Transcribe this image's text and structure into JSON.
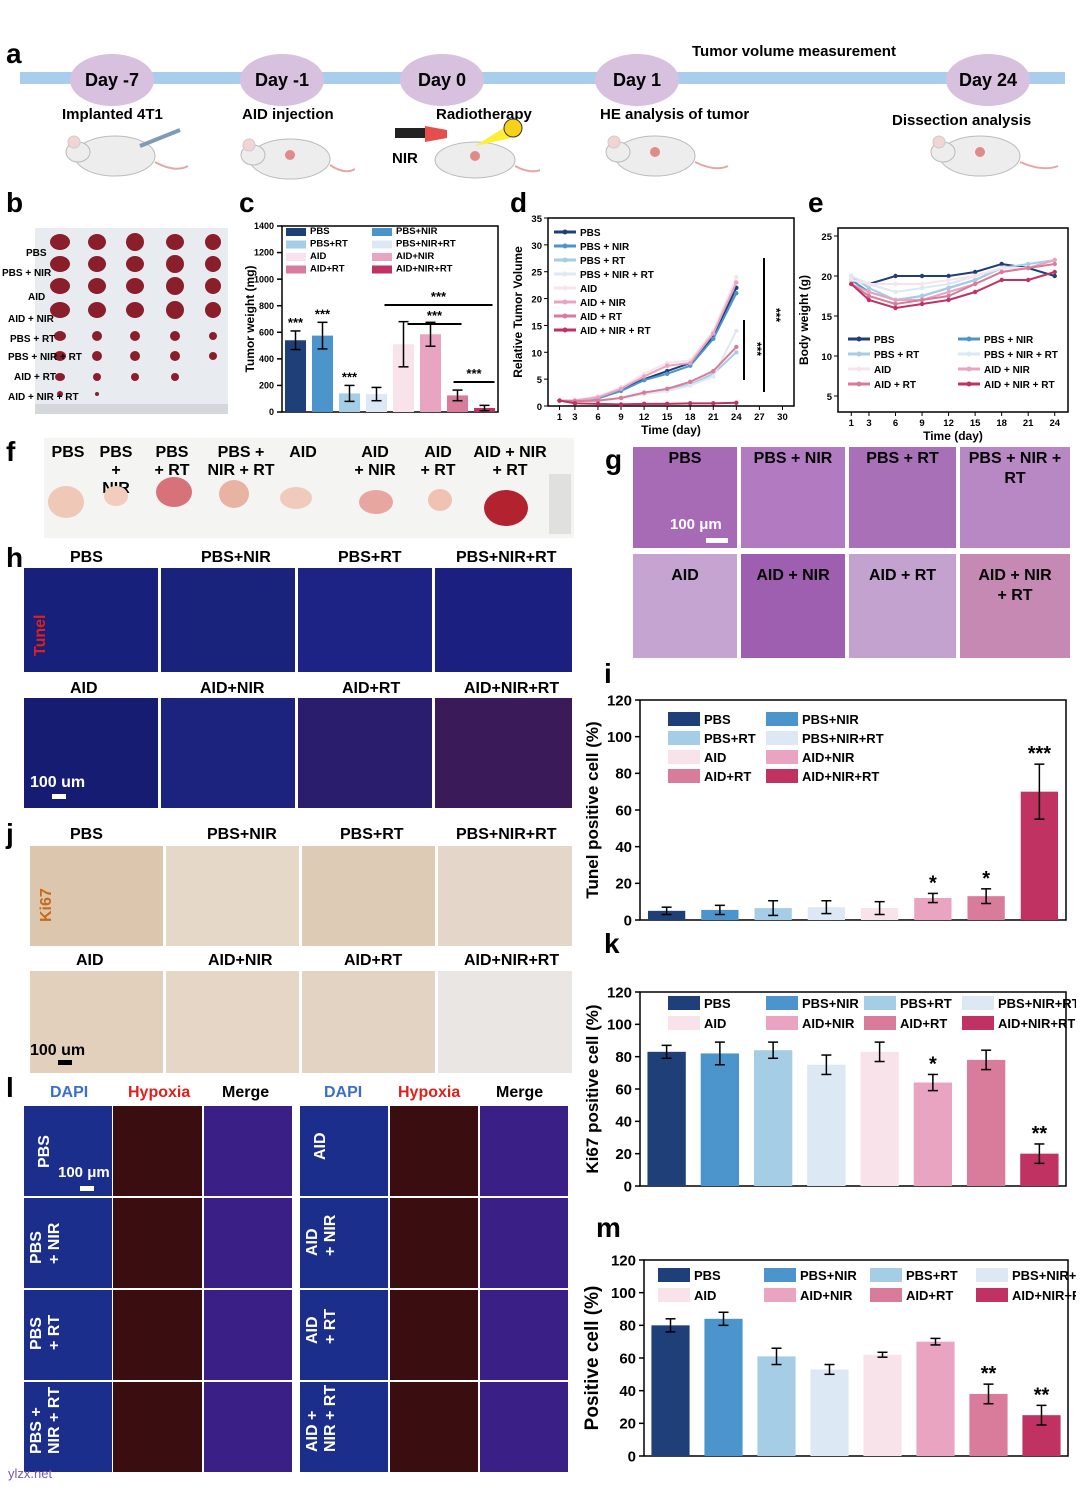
{
  "panels": {
    "a": "a",
    "b": "b",
    "c": "c",
    "d": "d",
    "e": "e",
    "f": "f",
    "g": "g",
    "h": "h",
    "i": "i",
    "j": "j",
    "k": "k",
    "l": "l",
    "m": "m"
  },
  "timeline": {
    "measurement_label": "Tumor volume measurement",
    "days": [
      "Day -7",
      "Day -1",
      "Day 0",
      "Day 1",
      "Day 24"
    ],
    "events": [
      "Implanted 4T1",
      "AID injection",
      "Radiotherapy",
      "HE analysis of tumor",
      "Dissection analysis"
    ],
    "nir_label": "NIR"
  },
  "panel_b": {
    "row_labels": [
      "PBS",
      "PBS + NIR",
      "AID",
      "AID + NIR",
      "PBS + RT",
      "PBS + NIR + RT",
      "AID + RT",
      "AID + NIR + RT"
    ]
  },
  "panel_f": {
    "labels": [
      "PBS",
      "PBS\n+ NIR",
      "PBS\n+ RT",
      "PBS +\nNIR + RT",
      "AID",
      "AID\n+ NIR",
      "AID\n+ RT",
      "AID + NIR\n+ RT"
    ]
  },
  "panel_g": {
    "labels": [
      "PBS",
      "PBS + NIR",
      "PBS + RT",
      "PBS + NIR +\nRT",
      "AID",
      "AID + NIR",
      "AID + RT",
      "AID + NIR\n+ RT"
    ],
    "scale": "100 μm"
  },
  "panel_h": {
    "labels_top": [
      "PBS",
      "PBS+NIR",
      "PBS+RT",
      "PBS+NIR+RT"
    ],
    "labels_bottom": [
      "AID",
      "AID+NIR",
      "AID+RT",
      "AID+NIR+RT"
    ],
    "stain": "Tunel",
    "scale": "100 um"
  },
  "panel_j": {
    "labels_top": [
      "PBS",
      "PBS+NIR",
      "PBS+RT",
      "PBS+NIR+RT"
    ],
    "labels_bottom": [
      "AID",
      "AID+NIR",
      "AID+RT",
      "AID+NIR+RT"
    ],
    "stain": "Ki67",
    "scale": "100 um"
  },
  "panel_l": {
    "headers": [
      "DAPI",
      "Hypoxia",
      "Merge",
      "DAPI",
      "Hypoxia",
      "Merge"
    ],
    "rows_left": [
      "PBS",
      "PBS\n+ NIR",
      "PBS\n+ RT",
      "PBS +\nNIR + RT"
    ],
    "rows_right": [
      "AID",
      "AID\n+ NIR",
      "AID\n+ RT",
      "AID +\nNIR + RT"
    ],
    "scale": "100 μm"
  },
  "watermark": "ylzx.net",
  "colors": {
    "c1": "#1f3f78",
    "c2": "#4b95cc",
    "c3": "#a6cde6",
    "c4": "#dde8f5",
    "c5": "#f8e3ea",
    "c6": "#e9a4c1",
    "c7": "#d97b9b",
    "c8": "#bf3262"
  },
  "chart_data": [
    {
      "id": "c",
      "type": "bar",
      "title": "",
      "ylabel": "Tumor weight (mg)",
      "xlabel": "",
      "ylim": [
        0,
        1400
      ],
      "yticks": [
        0,
        200,
        400,
        600,
        800,
        1000,
        1200,
        1400
      ],
      "categories": [
        "PBS",
        "PBS+NIR",
        "PBS+RT",
        "PBS+NIR+RT",
        "AID",
        "AID+NIR",
        "AID+RT",
        "AID+NIR+RT"
      ],
      "values": [
        540,
        575,
        140,
        135,
        510,
        585,
        125,
        30
      ],
      "errors": [
        70,
        100,
        60,
        50,
        170,
        90,
        40,
        20
      ],
      "annotations": [
        "***",
        "***",
        "***"
      ]
    },
    {
      "id": "d",
      "type": "line",
      "title": "",
      "ylabel": "Relative Tumor Volume",
      "xlabel": "Time (day)",
      "x": [
        1,
        3,
        6,
        9,
        12,
        15,
        18,
        21,
        24
      ],
      "xticks": [
        1,
        3,
        6,
        9,
        12,
        15,
        18,
        21,
        24,
        27,
        30
      ],
      "ylim": [
        0,
        35
      ],
      "yticks": [
        0,
        5,
        10,
        15,
        20,
        25,
        30,
        35
      ],
      "series": [
        {
          "name": "PBS",
          "values": [
            1,
            1,
            1.5,
            3,
            5,
            6.5,
            8,
            13,
            22
          ]
        },
        {
          "name": "PBS + NIR",
          "values": [
            1,
            1,
            1.4,
            2.8,
            4.8,
            6,
            7.5,
            12.5,
            21
          ]
        },
        {
          "name": "PBS + RT",
          "values": [
            1,
            0.9,
            1,
            1.5,
            2.3,
            3,
            4,
            6,
            10
          ]
        },
        {
          "name": "PBS + NIR + RT",
          "values": [
            1,
            0.9,
            1,
            1.4,
            2.2,
            2.8,
            3.8,
            5.5,
            14
          ]
        },
        {
          "name": "AID",
          "values": [
            1,
            1.1,
            1.8,
            3.5,
            6,
            8,
            8.5,
            14,
            24
          ]
        },
        {
          "name": "AID + NIR",
          "values": [
            1,
            1,
            1.6,
            3.2,
            5.5,
            7.5,
            8,
            13.5,
            23
          ]
        },
        {
          "name": "AID + RT",
          "values": [
            1,
            0.9,
            1,
            1.5,
            2.5,
            3.2,
            4.5,
            6.5,
            11
          ]
        },
        {
          "name": "AID + NIR + RT",
          "values": [
            1,
            0.5,
            0.4,
            0.3,
            0.4,
            0.4,
            0.5,
            0.5,
            0.6
          ]
        }
      ],
      "annotations": [
        "***",
        "***"
      ]
    },
    {
      "id": "e",
      "type": "line",
      "title": "",
      "ylabel": "Body weight (g)",
      "xlabel": "Time (day)",
      "x": [
        1,
        3,
        6,
        9,
        12,
        15,
        18,
        21,
        24
      ],
      "xticks": [
        1,
        3,
        6,
        9,
        12,
        15,
        18,
        21,
        24
      ],
      "ylim": [
        3,
        26
      ],
      "yticks": [
        5,
        10,
        15,
        20,
        25
      ],
      "series": [
        {
          "name": "PBS",
          "values": [
            19.5,
            19,
            20,
            20,
            20,
            20.5,
            21.5,
            21,
            20
          ]
        },
        {
          "name": "PBS + NIR",
          "values": [
            19.5,
            18,
            17,
            17.5,
            18.5,
            19.5,
            21,
            21,
            22
          ]
        },
        {
          "name": "PBS + RT",
          "values": [
            20,
            18.5,
            17,
            17.5,
            18.5,
            19.5,
            21,
            21.5,
            22
          ]
        },
        {
          "name": "PBS + NIR + RT",
          "values": [
            20,
            19,
            18,
            18.5,
            19,
            20,
            21,
            21,
            22
          ]
        },
        {
          "name": "AID",
          "values": [
            19.5,
            19,
            19,
            19,
            19.5,
            20,
            21,
            21,
            22
          ]
        },
        {
          "name": "AID + NIR",
          "values": [
            19,
            18,
            17,
            17,
            18,
            19,
            20.5,
            21,
            22
          ]
        },
        {
          "name": "AID + RT",
          "values": [
            19,
            17.5,
            16.5,
            17,
            17.5,
            19,
            20.5,
            21,
            21.5
          ]
        },
        {
          "name": "AID + NIR + RT",
          "values": [
            19,
            17,
            16,
            16.5,
            17,
            18,
            19.5,
            19.5,
            20.5
          ]
        }
      ]
    },
    {
      "id": "i",
      "type": "bar",
      "title": "",
      "ylabel": "Tunel positive cell (%)",
      "xlabel": "",
      "ylim": [
        0,
        120
      ],
      "yticks": [
        0,
        20,
        40,
        60,
        80,
        100,
        120
      ],
      "categories": [
        "PBS",
        "PBS+NIR",
        "PBS+RT",
        "PBS+NIR+RT",
        "AID",
        "AID+NIR",
        "AID+RT",
        "AID+NIR+RT"
      ],
      "values": [
        5,
        5.5,
        6.5,
        7,
        6.5,
        12,
        13,
        70
      ],
      "errors": [
        2,
        2.5,
        4,
        3.5,
        3.5,
        2.5,
        4,
        15
      ],
      "annotations": [
        "",
        "",
        "",
        "",
        "",
        "*",
        "*",
        "***"
      ]
    },
    {
      "id": "k",
      "type": "bar",
      "title": "",
      "ylabel": "Ki67 positive cell (%)",
      "xlabel": "",
      "ylim": [
        0,
        120
      ],
      "yticks": [
        0,
        20,
        40,
        60,
        80,
        100,
        120
      ],
      "categories": [
        "PBS",
        "PBS+NIR",
        "PBS+RT",
        "PBS+NIR+RT",
        "AID",
        "AID+NIR",
        "AID+RT",
        "AID+NIR+RT"
      ],
      "values": [
        83,
        82,
        84,
        75,
        83,
        64,
        78,
        20
      ],
      "errors": [
        4,
        7,
        5,
        6,
        6,
        5,
        6,
        6
      ],
      "annotations": [
        "",
        "",
        "",
        "",
        "",
        "*",
        "",
        "**"
      ]
    },
    {
      "id": "m",
      "type": "bar",
      "title": "",
      "ylabel": "Positive cell (%)",
      "xlabel": "",
      "ylim": [
        0,
        120
      ],
      "yticks": [
        0,
        20,
        40,
        60,
        80,
        100,
        120
      ],
      "categories": [
        "PBS",
        "PBS+NIR",
        "PBS+RT",
        "PBS+NIR+RT",
        "AID",
        "AID+NIR",
        "AID+RT",
        "AID+NIR+RT"
      ],
      "values": [
        80,
        84,
        61,
        53,
        62,
        70,
        38,
        25
      ],
      "errors": [
        4,
        4,
        5,
        3,
        1.5,
        2,
        6,
        6
      ],
      "annotations": [
        "",
        "",
        "",
        "",
        "",
        "",
        "**",
        "**"
      ]
    }
  ]
}
